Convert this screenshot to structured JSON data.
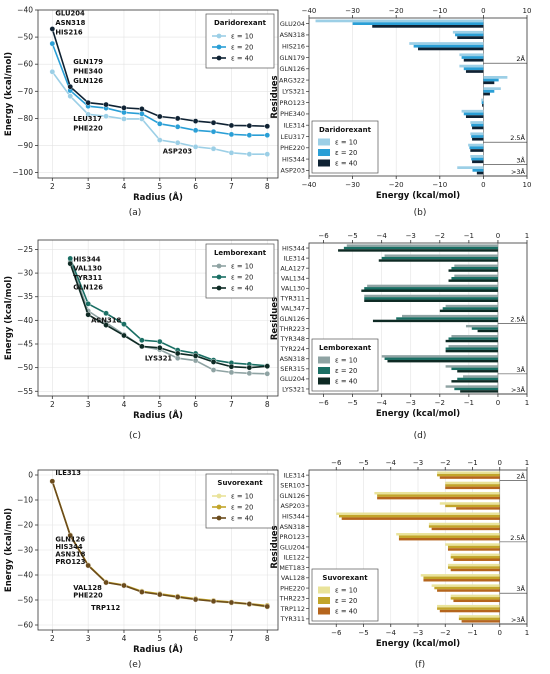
{
  "caption_labels": [
    "(a)",
    "(b)",
    "(c)",
    "(d)",
    "(e)",
    "(f)"
  ],
  "chart_data": [
    {
      "type": "line",
      "panel": "(a)",
      "x": [
        2,
        2.5,
        3,
        3.5,
        4,
        4.5,
        5,
        5.5,
        6,
        6.5,
        7,
        7.5,
        8
      ],
      "xlabel": "Radius (Å)",
      "ylabel": "Energy (kcal/mol)",
      "xlim": [
        1.6,
        8.3
      ],
      "ylim": [
        -102,
        -40
      ],
      "xticks": [
        2,
        3,
        4,
        5,
        6,
        7,
        8
      ],
      "yticks": [
        -100,
        -90,
        -80,
        -70,
        -60,
        -50,
        -40
      ],
      "legend_title": "Daridorexant",
      "legend_position": "top-right",
      "series": [
        {
          "name": "ε = 10",
          "color": "#9ccfe6",
          "values": [
            -62.8,
            -71.8,
            -78.5,
            -79.2,
            -80.2,
            -80.2,
            -88.0,
            -89.0,
            -90.5,
            -91.2,
            -92.7,
            -93.2,
            -93.2
          ]
        },
        {
          "name": "ε = 20",
          "color": "#2a9fd6",
          "values": [
            -52.4,
            -69.7,
            -75.5,
            -76.2,
            -77.8,
            -78.3,
            -82.0,
            -83.1,
            -84.4,
            -84.9,
            -85.9,
            -86.2,
            -86.2
          ]
        },
        {
          "name": "ε = 40",
          "color": "#0f2233",
          "values": [
            -47.0,
            -68.3,
            -74.2,
            -74.9,
            -76.1,
            -76.5,
            -79.3,
            -80.0,
            -81.0,
            -81.6,
            -82.6,
            -82.7,
            -82.9
          ]
        }
      ],
      "annotations": [
        {
          "text": "GLU204",
          "x": 2,
          "y": -42
        },
        {
          "text": "ASN318",
          "x": 2,
          "y": -45.5
        },
        {
          "text": "HIS216",
          "x": 2,
          "y": -49
        },
        {
          "text": "GLN179",
          "x": 2.5,
          "y": -60
        },
        {
          "text": "PHE340",
          "x": 2.5,
          "y": -63.5
        },
        {
          "text": "GLN126",
          "x": 2.5,
          "y": -67
        },
        {
          "text": "LEU317",
          "x": 2.5,
          "y": -81
        },
        {
          "text": "PHE220",
          "x": 2.5,
          "y": -84.5
        },
        {
          "text": "ASP203",
          "x": 5,
          "y": -93
        }
      ]
    },
    {
      "type": "bar",
      "orientation": "horizontal",
      "panel": "(b)",
      "categories": [
        "GLU204",
        "ASN318",
        "HIS216",
        "GLN179",
        "GLN126",
        "ARG322",
        "LYS321",
        "PRO123",
        "PHE340",
        "ILE314",
        "LEU317",
        "PHE220",
        "HIS344",
        "ASP203"
      ],
      "xlabel": "Energy (kcal/mol)",
      "ylabel": "Residues",
      "xlim": [
        -40,
        10
      ],
      "xticks": [
        -40,
        -30,
        -20,
        -10,
        0,
        10
      ],
      "legend_title": "Daridorexant",
      "legend_position": "bottom-left",
      "series": [
        {
          "name": "ε = 10",
          "color": "#9ccfe6",
          "values": [
            -38.5,
            -7.0,
            -17.0,
            -5.5,
            -5.5,
            5.5,
            4.0,
            -0.5,
            -5.0,
            -3.0,
            -3.0,
            -3.5,
            -3.0,
            -6.0
          ]
        },
        {
          "name": "ε = 20",
          "color": "#2a9fd6",
          "values": [
            -30.0,
            -6.5,
            -16.0,
            -5.0,
            -4.5,
            3.5,
            2.5,
            -0.4,
            -4.5,
            -2.8,
            -2.8,
            -3.2,
            -2.8,
            -2.5
          ]
        },
        {
          "name": "ε = 40",
          "color": "#0f2233",
          "values": [
            -25.5,
            -6.0,
            -15.0,
            -4.5,
            -4.0,
            2.5,
            1.5,
            -0.3,
            -4.0,
            -2.6,
            -2.6,
            -3.0,
            -2.6,
            -1.5
          ]
        }
      ],
      "radius_labels": [
        {
          "text": "2Å",
          "after": "GLN179"
        },
        {
          "text": "2.5Å",
          "after": "LEU317"
        },
        {
          "text": "3Å",
          "after": "HIS344"
        },
        {
          "text": ">3Å",
          "after": "ASP203"
        }
      ]
    },
    {
      "type": "line",
      "panel": "(c)",
      "x": [
        2.5,
        3,
        3.5,
        4,
        4.5,
        5,
        5.5,
        6,
        6.5,
        7,
        7.5,
        8
      ],
      "xlabel": "Radius (Å)",
      "ylabel": "Energy (kcal/mol)",
      "xlim": [
        1.6,
        8.3
      ],
      "ylim": [
        -56,
        -23
      ],
      "xticks": [
        2,
        3,
        4,
        5,
        6,
        7,
        8
      ],
      "yticks": [
        -55,
        -50,
        -45,
        -40,
        -35,
        -30,
        -25
      ],
      "legend_title": "Lemborexant",
      "legend_position": "top-right",
      "series": [
        {
          "name": "ε = 10",
          "color": "#8fa3a3",
          "values": [
            -27.5,
            -38.0,
            -40.5,
            -43.0,
            -45.5,
            -46.2,
            -48.0,
            -48.5,
            -50.5,
            -51.0,
            -51.2,
            -51.3
          ]
        },
        {
          "name": "ε = 20",
          "color": "#1a6f64",
          "values": [
            -26.9,
            -36.5,
            -38.5,
            -40.8,
            -44.2,
            -44.5,
            -46.3,
            -47.0,
            -48.4,
            -49.0,
            -49.3,
            -49.6
          ]
        },
        {
          "name": "ε = 40",
          "color": "#0e2a24",
          "values": [
            -28.0,
            -38.8,
            -41.0,
            -43.2,
            -45.5,
            -45.8,
            -47.0,
            -47.5,
            -48.8,
            -49.8,
            -50.0,
            -49.7
          ]
        }
      ],
      "annotations": [
        {
          "text": "HIS344",
          "x": 2.5,
          "y": -27.5
        },
        {
          "text": "VAL130",
          "x": 2.5,
          "y": -29.5
        },
        {
          "text": "TYR311",
          "x": 2.5,
          "y": -31.5
        },
        {
          "text": "GLN126",
          "x": 2.5,
          "y": -33.5
        },
        {
          "text": "ASN318",
          "x": 3,
          "y": -40.5
        },
        {
          "text": "LYS321",
          "x": 4.5,
          "y": -48.5
        }
      ]
    },
    {
      "type": "bar",
      "orientation": "horizontal",
      "panel": "(d)",
      "categories": [
        "HIS344",
        "ILE314",
        "ALA127",
        "VAL134",
        "VAL130",
        "TYR311",
        "VAL347",
        "GLN126",
        "THR223",
        "TYR348",
        "TYR224",
        "ASN318",
        "SER315",
        "GLU204",
        "LYS321"
      ],
      "xlabel": "Energy (kcal/mol)",
      "ylabel": "Residues",
      "xlim": [
        -6.5,
        1
      ],
      "xticks": [
        -6,
        -5,
        -4,
        -3,
        -2,
        -1,
        0,
        1
      ],
      "legend_title": "Lemborexant",
      "legend_position": "bottom-left",
      "series": [
        {
          "name": "ε = 10",
          "color": "#8fa3a3",
          "values": [
            -5.2,
            -3.9,
            -1.5,
            -1.5,
            -4.5,
            -4.6,
            -1.8,
            -3.3,
            -1.1,
            -1.6,
            -1.7,
            -4.0,
            -1.8,
            -1.2,
            -1.8
          ]
        },
        {
          "name": "ε = 20",
          "color": "#1a6f64",
          "values": [
            -5.3,
            -4.0,
            -1.6,
            -1.6,
            -4.6,
            -4.6,
            -1.9,
            -3.5,
            -0.9,
            -1.7,
            -1.8,
            -3.9,
            -1.6,
            -1.4,
            -1.5
          ]
        },
        {
          "name": "ε = 40",
          "color": "#0e2a24",
          "values": [
            -5.5,
            -4.1,
            -1.7,
            -1.7,
            -4.7,
            -4.6,
            -2.0,
            -4.3,
            -0.7,
            -1.8,
            -1.8,
            -3.8,
            -1.4,
            -1.6,
            -1.3
          ]
        }
      ],
      "radius_labels": [
        {
          "text": "2.5Å",
          "after": "GLN126"
        },
        {
          "text": "3Å",
          "after": "SER315"
        },
        {
          "text": ">3Å",
          "after": "LYS321"
        }
      ]
    },
    {
      "type": "line",
      "panel": "(e)",
      "x": [
        2,
        2.5,
        3,
        3.5,
        4,
        4.5,
        5,
        5.5,
        6,
        6.5,
        7,
        7.5,
        8
      ],
      "xlabel": "Radius (Å)",
      "ylabel": "Energy (kcal/mol)",
      "xlim": [
        1.6,
        8.3
      ],
      "ylim": [
        -62,
        2
      ],
      "xticks": [
        2,
        3,
        4,
        5,
        6,
        7,
        8
      ],
      "yticks": [
        -60,
        -50,
        -40,
        -30,
        -20,
        -10,
        0
      ],
      "legend_title": "Suvorexant",
      "legend_position": "top-right",
      "series": [
        {
          "name": "ε = 10",
          "color": "#e9e39a",
          "values": [
            -2.5,
            -24.0,
            -36.0,
            -43.0,
            -44.2,
            -46.8,
            -47.8,
            -49.0,
            -49.8,
            -50.5,
            -51.2,
            -51.8,
            -52.8
          ]
        },
        {
          "name": "ε = 20",
          "color": "#c2a52a",
          "values": [
            -2.5,
            -24.0,
            -36.0,
            -42.8,
            -44.0,
            -46.5,
            -47.5,
            -48.5,
            -49.5,
            -50.2,
            -50.8,
            -51.5,
            -52.2
          ]
        },
        {
          "name": "ε = 40",
          "color": "#6b4b1c",
          "values": [
            -2.5,
            -24.2,
            -36.2,
            -43.0,
            -44.2,
            -46.8,
            -47.8,
            -48.8,
            -49.8,
            -50.5,
            -51.0,
            -51.6,
            -52.6
          ]
        }
      ],
      "annotations": [
        {
          "text": "ILE313",
          "x": 2,
          "y": 0
        },
        {
          "text": "GLN126",
          "x": 2,
          "y": -26.5
        },
        {
          "text": "HIS344",
          "x": 2,
          "y": -29.5
        },
        {
          "text": "ASN318",
          "x": 2,
          "y": -32.5
        },
        {
          "text": "PRO123",
          "x": 2,
          "y": -35.5
        },
        {
          "text": "VAL128",
          "x": 2.5,
          "y": -46
        },
        {
          "text": "PHE220",
          "x": 2.5,
          "y": -49
        },
        {
          "text": "TRP112",
          "x": 3,
          "y": -54
        }
      ]
    },
    {
      "type": "bar",
      "orientation": "horizontal",
      "panel": "(f)",
      "categories": [
        "ILE314",
        "SER103",
        "GLN126",
        "ASP203",
        "HIS344",
        "ASN318",
        "PRO123",
        "GLU204",
        "ILE122",
        "MET183",
        "VAL128",
        "PHE220",
        "THR223",
        "TRP112",
        "TYR311"
      ],
      "xlabel": "Energy (kcal/mol)",
      "ylabel": "Residues",
      "xlim": [
        -7,
        1
      ],
      "xticks": [
        -6,
        -5,
        -4,
        -3,
        -2,
        -1,
        0,
        1
      ],
      "legend_title": "Suvorexant",
      "legend_position": "bottom-left",
      "series": [
        {
          "name": "ε = 10",
          "color": "#e9e39a",
          "values": [
            -2.3,
            -2.0,
            -4.6,
            -2.2,
            -6.0,
            -2.6,
            -3.8,
            -2.0,
            -1.8,
            -1.9,
            -2.9,
            -2.5,
            -1.8,
            -2.3,
            -1.5
          ]
        },
        {
          "name": "ε = 20",
          "color": "#c2a52a",
          "values": [
            -2.3,
            -2.0,
            -4.5,
            -2.0,
            -5.9,
            -2.6,
            -3.7,
            -1.9,
            -1.8,
            -1.9,
            -2.8,
            -2.4,
            -1.8,
            -2.3,
            -1.5
          ]
        },
        {
          "name": "ε = 40",
          "color": "#b5651d",
          "values": [
            -2.2,
            -2.0,
            -4.5,
            -1.6,
            -5.8,
            -2.5,
            -3.7,
            -1.9,
            -1.7,
            -1.8,
            -2.8,
            -2.3,
            -1.7,
            -2.2,
            -1.4
          ]
        }
      ],
      "radius_labels": [
        {
          "text": "2Å",
          "after": "ILE314"
        },
        {
          "text": "2.5Å",
          "after": "PRO123"
        },
        {
          "text": "3Å",
          "after": "PHE220"
        },
        {
          "text": ">3Å",
          "after": "TYR311"
        }
      ]
    }
  ]
}
